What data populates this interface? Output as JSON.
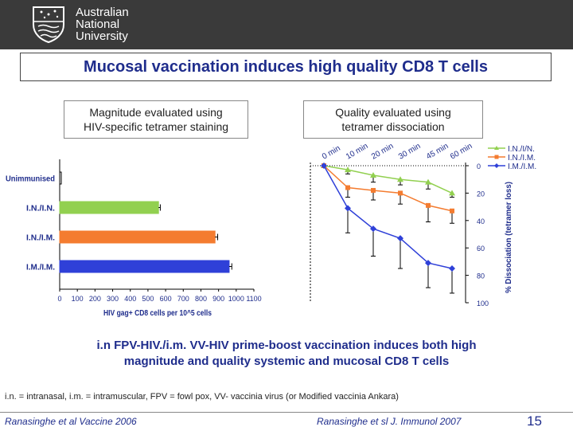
{
  "header": {
    "logo_lines": [
      "Australian",
      "National",
      "University"
    ]
  },
  "title": "Mucosal vaccination induces high quality CD8 T cells",
  "left_box": {
    "line1": "Magnitude evaluated using",
    "line2": "HIV-specific tetramer staining"
  },
  "right_box": {
    "line1": "Quality evaluated using",
    "line2": "tetramer dissociation"
  },
  "chart_data": [
    {
      "type": "bar",
      "orientation": "horizontal",
      "categories": [
        "Unimmunised",
        "I.N./I.N.",
        "I.N./I.M.",
        "I.M./I.M."
      ],
      "values": [
        5,
        560,
        880,
        960
      ],
      "errors": [
        0,
        10,
        15,
        15
      ],
      "colors": [
        "#ffffff",
        "#92d050",
        "#f47c30",
        "#2f40d8"
      ],
      "xlabel": "HIV gag+ CD8 cells per 10^5 cells",
      "ylabel": "",
      "xlim": [
        0,
        1100
      ],
      "xticks": [
        "0",
        "100",
        "200",
        "300",
        "400",
        "500",
        "600",
        "700",
        "800",
        "900",
        "1000",
        "1100"
      ]
    },
    {
      "type": "line",
      "x": [
        "0 min",
        "10 min",
        "20 min",
        "30 min",
        "45 min",
        "60 min"
      ],
      "series": [
        {
          "name": "I.N./I/N.",
          "color": "#92d050",
          "marker": "triangle",
          "values": [
            0,
            3,
            7,
            10,
            12,
            20
          ],
          "errors": [
            0,
            3,
            5,
            4,
            5,
            3
          ]
        },
        {
          "name": "I.N./I.M.",
          "color": "#f47c30",
          "marker": "square",
          "values": [
            0,
            16,
            18,
            20,
            29,
            33
          ],
          "errors": [
            0,
            7,
            7,
            8,
            12,
            9
          ]
        },
        {
          "name": "I.M./I.M.",
          "color": "#2f40d8",
          "marker": "diamond",
          "values": [
            0,
            31,
            46,
            53,
            71,
            75
          ],
          "errors": [
            0,
            18,
            20,
            22,
            18,
            18
          ]
        }
      ],
      "ylabel": "% Dissociation (tetramer loss)",
      "ylim": [
        0,
        100
      ],
      "y_inverted": true,
      "yticks": [
        "0",
        "20",
        "40",
        "60",
        "80",
        "100"
      ]
    }
  ],
  "conclusion": {
    "line1": "i.n FPV-HIV./i.m. VV-HIV  prime-boost vaccination induces both high",
    "line2": "magnitude and quality systemic and mucosal CD8 T cells"
  },
  "footnote": "i.n. = intranasal,  i.m. = intramuscular, FPV = fowl pox, VV- vaccinia virus (or Modified vaccinia Ankara)",
  "footer": {
    "cite_left": "Ranasinghe et al Vaccine 2006",
    "cite_right": "Ranasinghe et sl J. Immunol 2007",
    "page_number": "15"
  }
}
